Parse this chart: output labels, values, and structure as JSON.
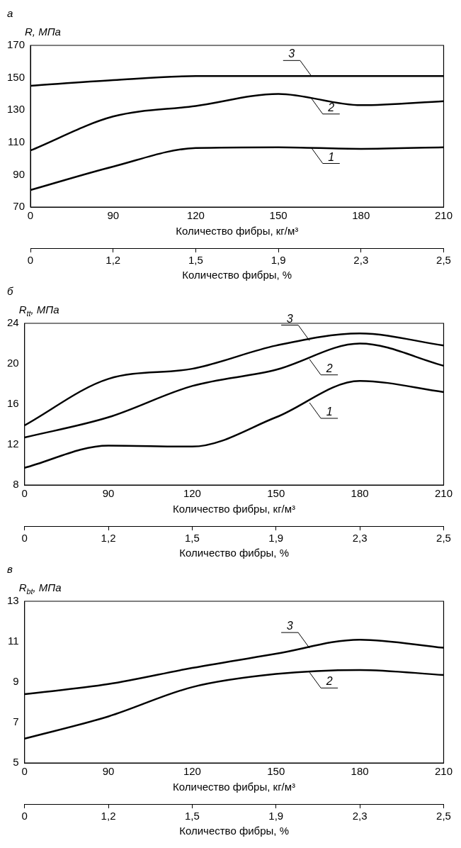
{
  "chart_data": [
    {
      "type": "line",
      "title": "а",
      "ylabel": "R, МПа",
      "xlabel": "Количество фибры, кг/м³",
      "x2label": "Количество фибры, %",
      "categories": [
        "0",
        "90",
        "120",
        "150",
        "180",
        "210"
      ],
      "annotations": [
        {
          "text": "0",
          "x": "0"
        },
        {
          "text": "1,2",
          "x": "90"
        },
        {
          "text": "1,5",
          "x": "120"
        },
        {
          "text": "1,9",
          "x": "150"
        },
        {
          "text": "2,3",
          "x": "180"
        },
        {
          "text": "2,5",
          "x": "210"
        }
      ],
      "ylim": [
        70,
        170
      ],
      "yticks": [
        70,
        90,
        110,
        130,
        150,
        170
      ],
      "marker": "none",
      "series": [
        {
          "name": "1",
          "color": "#000000",
          "values": [
            80.5,
            95,
            106.5,
            107,
            106,
            107
          ]
        },
        {
          "name": "2",
          "color": "#000000",
          "values": [
            105,
            126,
            132.5,
            140,
            133,
            135.5
          ]
        },
        {
          "name": "3",
          "color": "#000000",
          "values": [
            145,
            148.5,
            151,
            151,
            151,
            151
          ]
        }
      ]
    },
    {
      "type": "line",
      "title": "б",
      "ylabel": "R$_{tt}$, МПа",
      "xlabel": "Количество фибры, кг/м³",
      "x2label": "Количество фибры, %",
      "categories": [
        "0",
        "90",
        "120",
        "150",
        "180",
        "210"
      ],
      "annotations": [
        {
          "text": "0",
          "x": "0"
        },
        {
          "text": "1,2",
          "x": "90"
        },
        {
          "text": "1,5",
          "x": "120"
        },
        {
          "text": "1,9",
          "x": "150"
        },
        {
          "text": "2,3",
          "x": "180"
        },
        {
          "text": "2,5",
          "x": "210"
        }
      ],
      "ylim": [
        8,
        24
      ],
      "yticks": [
        8,
        12,
        16,
        20,
        24
      ],
      "marker": "none",
      "series": [
        {
          "name": "1",
          "color": "#000000",
          "values": [
            9.7,
            11.9,
            11.8,
            14.7,
            18.3,
            17.2
          ]
        },
        {
          "name": "2",
          "color": "#000000",
          "values": [
            12.7,
            14.7,
            17.8,
            19.4,
            22,
            19.8
          ]
        },
        {
          "name": "3",
          "color": "#000000",
          "values": [
            13.9,
            18.5,
            19.5,
            21.8,
            23,
            21.8
          ]
        }
      ]
    },
    {
      "type": "line",
      "title": "в",
      "ylabel": "R$_{bt}$, МПа",
      "xlabel": "Количество фибры, кг/м³",
      "x2label": "Количество фибры, %",
      "categories": [
        "0",
        "90",
        "120",
        "150",
        "180",
        "210"
      ],
      "annotations": [
        {
          "text": "0",
          "x": "0"
        },
        {
          "text": "1,2",
          "x": "90"
        },
        {
          "text": "1,5",
          "x": "120"
        },
        {
          "text": "1,9",
          "x": "150"
        },
        {
          "text": "2,3",
          "x": "180"
        },
        {
          "text": "2,5",
          "x": "210"
        }
      ],
      "ylim": [
        5,
        13
      ],
      "yticks": [
        5,
        7,
        9,
        11,
        13
      ],
      "marker": "none",
      "series": [
        {
          "name": "2",
          "color": "#000000",
          "values": [
            6.2,
            7.3,
            8.75,
            9.4,
            9.6,
            9.35
          ]
        },
        {
          "name": "3",
          "color": "#000000",
          "values": [
            8.4,
            8.9,
            9.7,
            10.4,
            11.1,
            10.7
          ]
        }
      ]
    }
  ]
}
